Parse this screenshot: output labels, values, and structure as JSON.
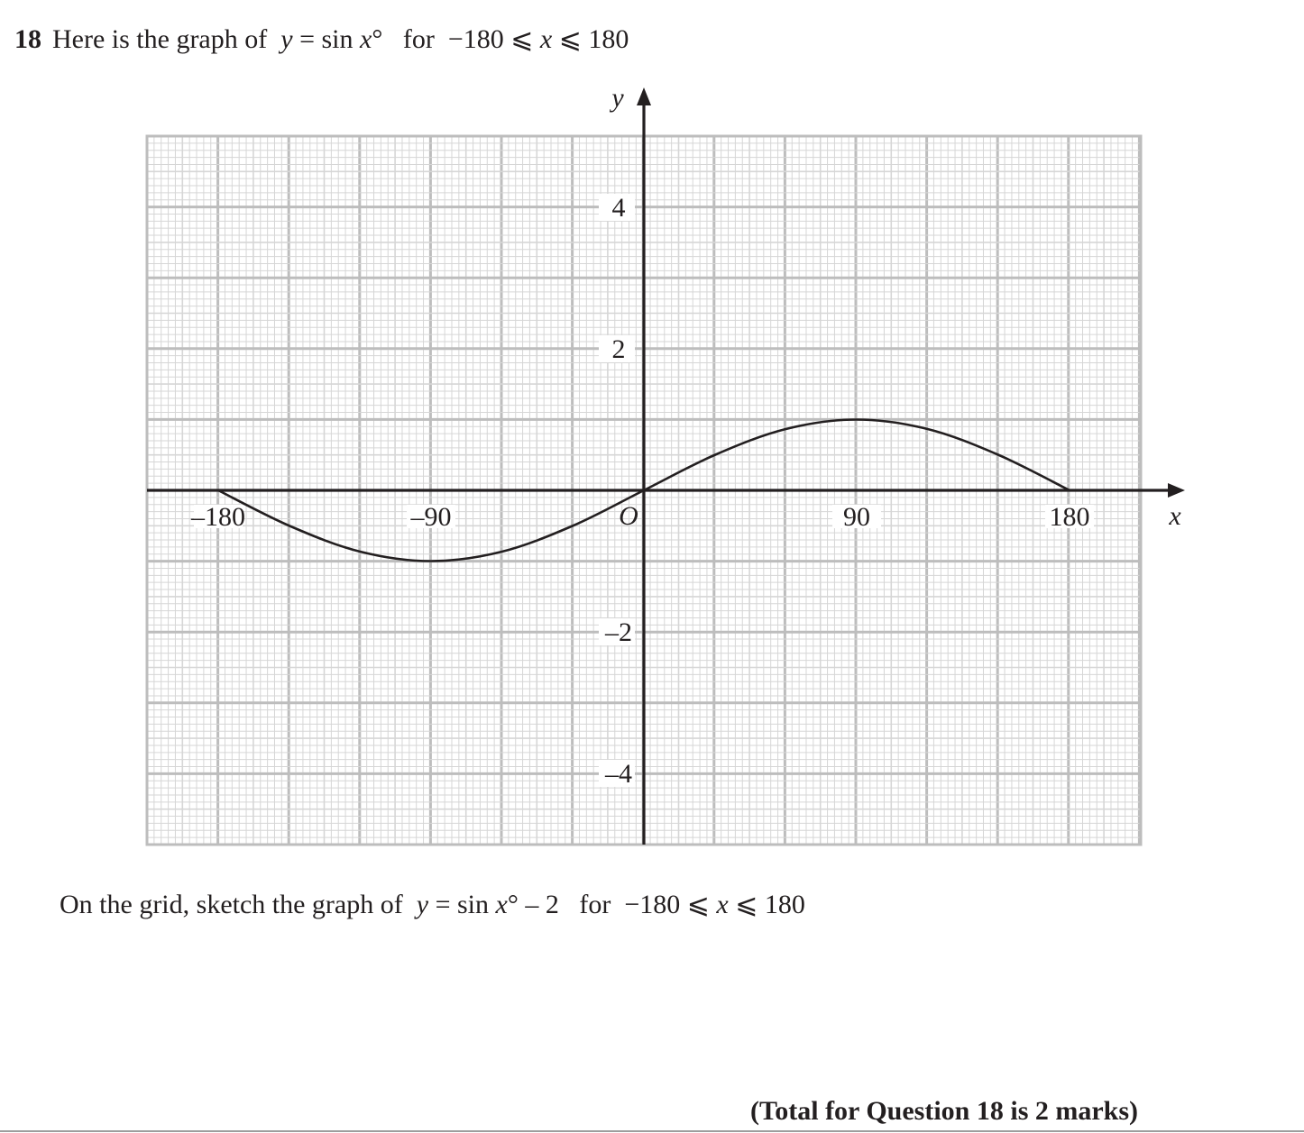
{
  "question": {
    "number": "18",
    "intro": "Here is the graph of",
    "equation_y": "y",
    "equation_eq": " = sin ",
    "equation_x": "x",
    "equation_deg": "°",
    "range_for": "for",
    "range_lo": "−180 ⩽ ",
    "range_x": "x",
    "range_hi": " ⩽ 180"
  },
  "instruction": {
    "lead": "On the grid, sketch the graph of",
    "y": "y",
    "eq": " = sin ",
    "x": "x",
    "rest": "° – 2",
    "for": "for",
    "range_lo": "−180 ⩽ ",
    "range_x": "x",
    "range_hi": " ⩽ 180"
  },
  "total": "(Total for Question 18 is 2 marks)",
  "chart_data": {
    "type": "line",
    "title": "",
    "xlabel": "x",
    "ylabel": "y",
    "origin_label": "O",
    "xlim": [
      -210,
      180
    ],
    "ylim": [
      -5,
      5
    ],
    "x_ticks": [
      -180,
      -90,
      90,
      180
    ],
    "x_tick_labels": [
      "–180",
      "–90",
      "90",
      "180"
    ],
    "y_ticks": [
      4,
      2,
      -2,
      -4
    ],
    "y_tick_labels": [
      "4",
      "2",
      "–2",
      "–4"
    ],
    "grid": true,
    "series": [
      {
        "x": [
          -180,
          -150,
          -120,
          -90,
          -60,
          -30,
          0,
          30,
          60,
          90,
          120,
          150,
          180
        ],
        "values": [
          0,
          -0.5,
          -0.866,
          -1,
          -0.866,
          -0.5,
          0,
          0.5,
          0.866,
          1,
          0.866,
          0.5,
          0
        ]
      }
    ]
  }
}
